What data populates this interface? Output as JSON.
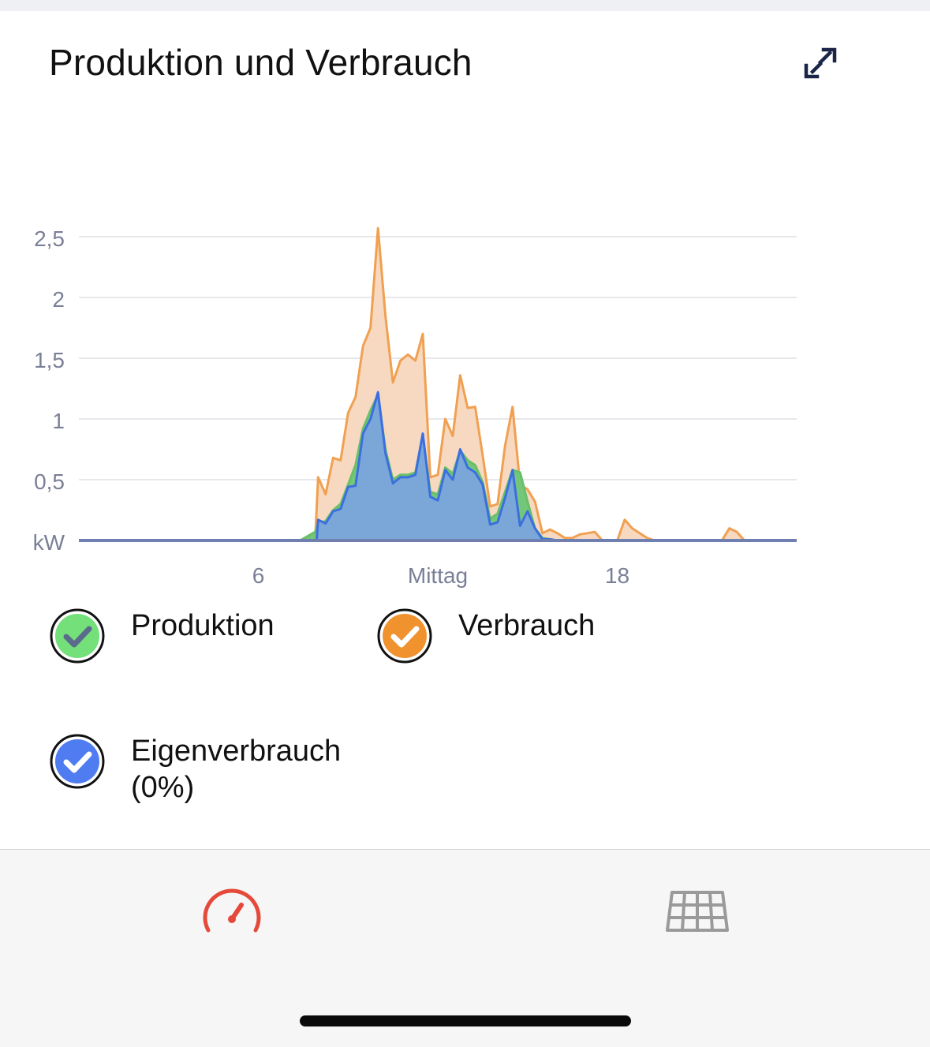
{
  "header": {
    "title": "Produktion und Verbrauch",
    "expand_icon": "expand-arrows-icon"
  },
  "chart_data": {
    "type": "area",
    "title": "",
    "ylabel": "kW",
    "xlabel": "",
    "ylim": [
      0,
      2.5
    ],
    "xlim": [
      0,
      24
    ],
    "yticks": [
      "kW",
      "0,5",
      "1",
      "1,5",
      "2",
      "2,5"
    ],
    "ytick_values": [
      0,
      0.5,
      1,
      1.5,
      2,
      2.5
    ],
    "xticks": [
      "6",
      "Mittag",
      "18"
    ],
    "xtick_values": [
      6,
      12,
      18
    ],
    "grid": true,
    "series": [
      {
        "name": "Verbrauch",
        "color": "#f0a050",
        "fill": "#f7d9c2",
        "x": [
          0,
          7.4,
          7.9,
          8.0,
          8.25,
          8.5,
          8.75,
          9.0,
          9.25,
          9.5,
          9.75,
          10.0,
          10.25,
          10.5,
          10.75,
          11.0,
          11.25,
          11.5,
          11.75,
          12.0,
          12.25,
          12.5,
          12.75,
          13.0,
          13.25,
          13.5,
          13.75,
          14.0,
          14.25,
          14.5,
          14.75,
          15.0,
          15.25,
          15.5,
          15.75,
          16.0,
          16.25,
          16.5,
          16.75,
          17.0,
          17.25,
          17.5,
          18.0,
          18.25,
          18.5,
          19.0,
          19.25,
          19.5,
          19.75,
          20.0,
          21.5,
          21.75,
          22.0,
          22.25,
          24
        ],
        "values": [
          0,
          0,
          0,
          0.52,
          0.38,
          0.68,
          0.66,
          1.05,
          1.18,
          1.6,
          1.75,
          2.57,
          1.85,
          1.3,
          1.48,
          1.53,
          1.48,
          1.7,
          0.52,
          0.54,
          1.0,
          0.86,
          1.36,
          1.09,
          1.1,
          0.7,
          0.28,
          0.3,
          0.78,
          1.1,
          0.46,
          0.42,
          0.32,
          0.06,
          0.09,
          0.06,
          0.02,
          0.02,
          0.05,
          0.06,
          0.07,
          0.0,
          0.0,
          0.17,
          0.1,
          0.02,
          0.0,
          0.0,
          0.0,
          0.0,
          0.0,
          0.1,
          0.07,
          0.0,
          0.0
        ]
      },
      {
        "name": "Produktion",
        "color": "#6abf69",
        "fill": "#74c67a",
        "x": [
          0,
          7.4,
          7.9,
          8.0,
          8.25,
          8.5,
          8.75,
          9.0,
          9.25,
          9.5,
          9.75,
          10.0,
          10.25,
          10.5,
          10.75,
          11.0,
          11.25,
          11.5,
          11.75,
          12.0,
          12.25,
          12.5,
          12.75,
          13.0,
          13.25,
          13.5,
          13.75,
          14.0,
          14.25,
          14.5,
          14.75,
          15.0,
          15.25,
          15.5,
          15.75,
          16.0,
          16.5,
          24
        ],
        "values": [
          0,
          0,
          0.07,
          0.14,
          0.16,
          0.25,
          0.3,
          0.46,
          0.62,
          0.92,
          1.07,
          1.2,
          0.75,
          0.5,
          0.54,
          0.54,
          0.56,
          0.86,
          0.4,
          0.38,
          0.6,
          0.55,
          0.74,
          0.66,
          0.62,
          0.48,
          0.18,
          0.22,
          0.4,
          0.58,
          0.56,
          0.32,
          0.1,
          0.02,
          0.01,
          0.0,
          0.0,
          0.0
        ]
      },
      {
        "name": "Eigenverbrauch",
        "color": "#3b6fe0",
        "fill": "#7ba7d8",
        "x": [
          0,
          7.95,
          8.0,
          8.25,
          8.5,
          8.75,
          9.0,
          9.25,
          9.5,
          9.75,
          10.0,
          10.25,
          10.5,
          10.75,
          11.0,
          11.25,
          11.5,
          11.75,
          12.0,
          12.25,
          12.5,
          12.75,
          13.0,
          13.25,
          13.5,
          13.75,
          14.0,
          14.25,
          14.5,
          14.75,
          15.0,
          15.25,
          15.5,
          15.75,
          16.0,
          24
        ],
        "values": [
          0,
          0,
          0.17,
          0.14,
          0.24,
          0.26,
          0.44,
          0.45,
          0.88,
          1.0,
          1.22,
          0.72,
          0.47,
          0.52,
          0.52,
          0.54,
          0.88,
          0.36,
          0.33,
          0.58,
          0.5,
          0.75,
          0.6,
          0.56,
          0.46,
          0.13,
          0.15,
          0.35,
          0.58,
          0.12,
          0.24,
          0.1,
          0.01,
          0.01,
          0.0,
          0.0
        ]
      }
    ]
  },
  "legend": {
    "items": [
      {
        "label": "Produktion",
        "checked": true,
        "color": "#74e07a",
        "check_color": "#5a6b8c"
      },
      {
        "label": "Verbrauch",
        "checked": true,
        "color": "#f0922e",
        "check_color": "#ffffff"
      },
      {
        "label": "Eigenverbrauch\n(0%)",
        "checked": true,
        "color": "#4f7cf0",
        "check_color": "#ffffff"
      }
    ]
  },
  "tabbar": {
    "items": [
      {
        "icon": "speedometer-icon",
        "active": true,
        "color": "#e5493a"
      },
      {
        "icon": "solar-panel-icon",
        "active": false,
        "color": "#9a9a9a"
      }
    ]
  }
}
